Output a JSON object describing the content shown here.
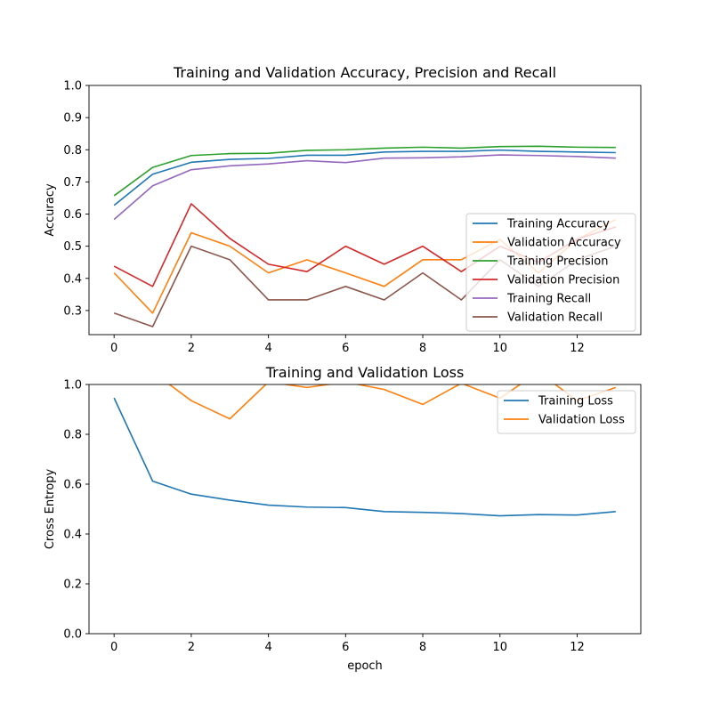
{
  "chart_data": [
    {
      "type": "line",
      "title": "Training and Validation Accuracy, Precision and Recall",
      "xlabel": "",
      "ylabel": "Accuracy",
      "xlim": [
        -0.65,
        13.65
      ],
      "ylim": [
        0.225,
        1.0
      ],
      "xticks": [
        0,
        2,
        4,
        6,
        8,
        10,
        12
      ],
      "yticks": [
        0.3,
        0.4,
        0.5,
        0.6,
        0.7,
        0.8,
        0.9,
        1.0
      ],
      "legend_position": "lower-right",
      "x": [
        0,
        1,
        2,
        3,
        4,
        5,
        6,
        7,
        8,
        9,
        10,
        11,
        12,
        13
      ],
      "series": [
        {
          "name": "Training Accuracy",
          "color": "#1f77b4",
          "values": [
            0.627,
            0.724,
            0.761,
            0.77,
            0.773,
            0.783,
            0.783,
            0.793,
            0.795,
            0.795,
            0.799,
            0.795,
            0.793,
            0.791
          ]
        },
        {
          "name": "Validation Accuracy",
          "color": "#ff7f0e",
          "values": [
            0.417,
            0.292,
            0.542,
            0.5,
            0.417,
            0.458,
            0.417,
            0.375,
            0.458,
            0.458,
            0.521,
            0.417,
            0.521,
            0.583
          ]
        },
        {
          "name": "Training Precision",
          "color": "#2ca02c",
          "values": [
            0.657,
            0.745,
            0.782,
            0.788,
            0.789,
            0.798,
            0.8,
            0.805,
            0.808,
            0.805,
            0.81,
            0.811,
            0.808,
            0.807
          ]
        },
        {
          "name": "Validation Precision",
          "color": "#d62728",
          "values": [
            0.438,
            0.375,
            0.632,
            0.524,
            0.444,
            0.421,
            0.5,
            0.444,
            0.5,
            0.421,
            0.5,
            0.45,
            0.522,
            0.56
          ]
        },
        {
          "name": "Training Recall",
          "color": "#9467bd",
          "values": [
            0.583,
            0.688,
            0.738,
            0.75,
            0.756,
            0.766,
            0.76,
            0.774,
            0.775,
            0.778,
            0.784,
            0.782,
            0.779,
            0.774
          ]
        },
        {
          "name": "Validation Recall",
          "color": "#8c564b",
          "values": [
            0.292,
            0.25,
            0.5,
            0.458,
            0.333,
            0.333,
            0.375,
            0.333,
            0.417,
            0.333,
            0.458,
            0.375,
            0.458,
            0.5
          ]
        }
      ]
    },
    {
      "type": "line",
      "title": "Training and Validation Loss",
      "xlabel": "epoch",
      "ylabel": "Cross Entropy",
      "xlim": [
        -0.65,
        13.65
      ],
      "ylim": [
        0.0,
        1.0
      ],
      "xticks": [
        0,
        2,
        4,
        6,
        8,
        10,
        12
      ],
      "yticks": [
        0.0,
        0.2,
        0.4,
        0.6,
        0.8,
        1.0
      ],
      "legend_position": "upper-right",
      "x": [
        0,
        1,
        2,
        3,
        4,
        5,
        6,
        7,
        8,
        9,
        10,
        11,
        12,
        13
      ],
      "series": [
        {
          "name": "Training Loss",
          "color": "#1f77b4",
          "values": [
            0.946,
            0.612,
            0.56,
            0.536,
            0.516,
            0.508,
            0.506,
            0.49,
            0.487,
            0.482,
            0.473,
            0.478,
            0.476,
            0.49
          ]
        },
        {
          "name": "Validation Loss",
          "color": "#ff7f0e",
          "values": [
            1.1,
            1.05,
            0.935,
            0.862,
            1.01,
            0.988,
            1.01,
            0.98,
            0.92,
            1.005,
            0.945,
            1.05,
            0.935,
            0.988
          ]
        }
      ]
    }
  ]
}
